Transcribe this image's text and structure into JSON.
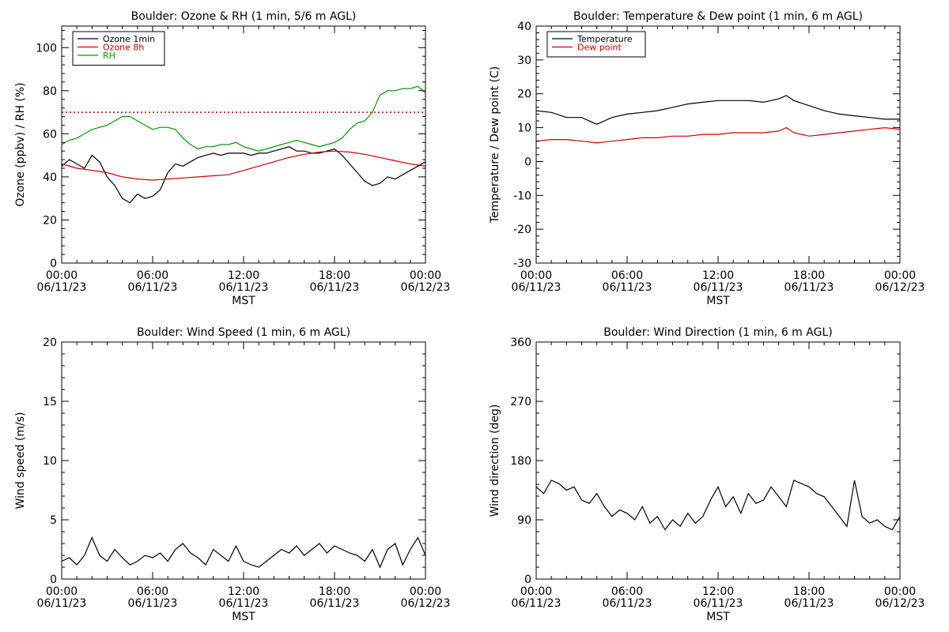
{
  "chart_data": [
    {
      "id": "ozone-rh",
      "type": "line",
      "title": "Boulder: Ozone & RH (1 min, 5/6 m AGL)",
      "xlabel": "MST",
      "ylabel": "Ozone (ppbv) / RH (%)",
      "xlim": [
        0,
        24
      ],
      "ylim": [
        0,
        110
      ],
      "xticks": [
        {
          "t": "00:00",
          "d": "06/11/23"
        },
        {
          "t": "06:00",
          "d": "06/11/23"
        },
        {
          "t": "12:00",
          "d": "06/11/23"
        },
        {
          "t": "18:00",
          "d": "06/11/23"
        },
        {
          "t": "00:00",
          "d": "06/12/23"
        }
      ],
      "yticks": [
        0,
        20,
        40,
        60,
        80,
        100
      ],
      "legend_position": "top-left",
      "reference_lines": [
        {
          "y": 70,
          "color": "#cc0000",
          "style": "dotted"
        }
      ],
      "series": [
        {
          "name": "Ozone 1min",
          "color": "#000000",
          "x": [
            0,
            0.5,
            1,
            1.5,
            2,
            2.5,
            3,
            3.5,
            4,
            4.5,
            5,
            5.5,
            6,
            6.5,
            7,
            7.5,
            8,
            8.5,
            9,
            9.5,
            10,
            10.5,
            11,
            11.5,
            12,
            12.5,
            13,
            13.5,
            14,
            14.5,
            15,
            15.5,
            16,
            16.5,
            17,
            17.5,
            18,
            18.5,
            19,
            19.5,
            20,
            20.5,
            21,
            21.5,
            22,
            22.5,
            23,
            23.5,
            24
          ],
          "y": [
            45,
            48,
            46,
            44,
            50,
            47,
            40,
            36,
            30,
            28,
            32,
            30,
            31,
            34,
            42,
            46,
            45,
            47,
            49,
            50,
            51,
            50,
            51,
            51,
            51,
            50,
            51,
            51,
            52,
            53,
            54,
            52,
            52,
            51,
            51,
            52,
            53,
            50,
            46,
            42,
            38,
            36,
            37,
            40,
            39,
            41,
            43,
            45,
            47
          ]
        },
        {
          "name": "Ozone 8h",
          "color": "#cc0000",
          "x": [
            0,
            1,
            2,
            3,
            4,
            5,
            6,
            7,
            8,
            9,
            10,
            11,
            12,
            13,
            14,
            15,
            16,
            17,
            18,
            19,
            20,
            21,
            22,
            23,
            24
          ],
          "y": [
            46,
            44,
            43,
            42,
            40,
            39,
            38.5,
            39,
            39.5,
            40,
            40.5,
            41,
            43,
            45,
            47,
            49,
            50.5,
            51.5,
            52,
            51.5,
            50.5,
            49,
            47.5,
            46,
            45
          ]
        },
        {
          "name": "RH",
          "color": "#009900",
          "x": [
            0,
            0.5,
            1,
            1.5,
            2,
            2.5,
            3,
            3.5,
            4,
            4.5,
            5,
            5.5,
            6,
            6.5,
            7,
            7.5,
            8,
            8.5,
            9,
            9.5,
            10,
            10.5,
            11,
            11.5,
            12,
            12.5,
            13,
            13.5,
            14,
            14.5,
            15,
            15.5,
            16,
            16.5,
            17,
            17.5,
            18,
            18.5,
            19,
            19.5,
            20,
            20.5,
            21,
            21.5,
            22,
            22.5,
            23,
            23.5,
            24
          ],
          "y": [
            55,
            57,
            58,
            60,
            62,
            63,
            64,
            66,
            68,
            68,
            66,
            64,
            62,
            63,
            63,
            62,
            58,
            55,
            53,
            54,
            54,
            55,
            55,
            56,
            54,
            53,
            52,
            53,
            54,
            55,
            56,
            57,
            56,
            55,
            54,
            55,
            56,
            58,
            62,
            65,
            66,
            70,
            78,
            80,
            80,
            81,
            81,
            82,
            79
          ]
        }
      ]
    },
    {
      "id": "temp-dew",
      "type": "line",
      "title": "Boulder: Temperature & Dew point (1 min, 6 m AGL)",
      "xlabel": "MST",
      "ylabel": "Temperature / Dew point (C)",
      "xlim": [
        0,
        24
      ],
      "ylim": [
        -30,
        40
      ],
      "xticks": [
        {
          "t": "00:00",
          "d": "06/11/23"
        },
        {
          "t": "06:00",
          "d": "06/11/23"
        },
        {
          "t": "12:00",
          "d": "06/11/23"
        },
        {
          "t": "18:00",
          "d": "06/11/23"
        },
        {
          "t": "00:00",
          "d": "06/12/23"
        }
      ],
      "yticks": [
        -30,
        -20,
        -10,
        0,
        10,
        20,
        30,
        40
      ],
      "legend_position": "top-left",
      "series": [
        {
          "name": "Temperature",
          "color": "#000000",
          "x": [
            0,
            1,
            2,
            3,
            4,
            5,
            6,
            7,
            8,
            9,
            10,
            11,
            12,
            13,
            14,
            15,
            16,
            16.5,
            17,
            18,
            19,
            20,
            21,
            22,
            23,
            24
          ],
          "y": [
            15,
            14.5,
            13,
            13,
            11,
            13,
            14,
            14.5,
            15,
            16,
            17,
            17.5,
            18,
            18,
            18,
            17.5,
            18.5,
            19.5,
            18,
            16.5,
            15,
            14,
            13.5,
            13,
            12.5,
            12.5
          ]
        },
        {
          "name": "Dew point",
          "color": "#cc0000",
          "x": [
            0,
            1,
            2,
            3,
            4,
            5,
            6,
            7,
            8,
            9,
            10,
            11,
            12,
            13,
            14,
            15,
            16,
            16.5,
            17,
            18,
            19,
            20,
            21,
            22,
            23,
            24
          ],
          "y": [
            6,
            6.5,
            6.5,
            6,
            5.5,
            6,
            6.5,
            7,
            7,
            7.5,
            7.5,
            8,
            8,
            8.5,
            8.5,
            8.5,
            9,
            10,
            8.5,
            7.5,
            8,
            8.5,
            9,
            9.5,
            10,
            9.5
          ]
        }
      ]
    },
    {
      "id": "wind-speed",
      "type": "line",
      "title": "Boulder: Wind Speed (1 min, 6 m AGL)",
      "xlabel": "MST",
      "ylabel": "Wind speed (m/s)",
      "xlim": [
        0,
        24
      ],
      "ylim": [
        0,
        20
      ],
      "xticks": [
        {
          "t": "00:00",
          "d": "06/11/23"
        },
        {
          "t": "06:00",
          "d": "06/11/23"
        },
        {
          "t": "12:00",
          "d": "06/11/23"
        },
        {
          "t": "18:00",
          "d": "06/11/23"
        },
        {
          "t": "00:00",
          "d": "06/12/23"
        }
      ],
      "yticks": [
        0,
        5,
        10,
        15,
        20
      ],
      "series": [
        {
          "name": "",
          "color": "#000000",
          "x": [
            0,
            0.5,
            1,
            1.5,
            2,
            2.5,
            3,
            3.5,
            4,
            4.5,
            5,
            5.5,
            6,
            6.5,
            7,
            7.5,
            8,
            8.5,
            9,
            9.5,
            10,
            10.5,
            11,
            11.5,
            12,
            12.5,
            13,
            13.5,
            14,
            14.5,
            15,
            15.5,
            16,
            16.5,
            17,
            17.5,
            18,
            18.5,
            19,
            19.5,
            20,
            20.5,
            21,
            21.5,
            22,
            22.5,
            23,
            23.5,
            24
          ],
          "y": [
            1.5,
            1.8,
            1.2,
            2,
            3.5,
            2,
            1.5,
            2.5,
            1.8,
            1.2,
            1.5,
            2,
            1.8,
            2.2,
            1.5,
            2.5,
            3,
            2.2,
            1.8,
            1.2,
            2.5,
            2,
            1.5,
            2.8,
            1.5,
            1.2,
            1,
            1.5,
            2,
            2.5,
            2.2,
            2.8,
            2,
            2.5,
            3,
            2.2,
            2.8,
            2.5,
            2.2,
            2,
            1.5,
            2.5,
            1,
            2.5,
            3,
            1.2,
            2.5,
            3.5,
            2
          ]
        }
      ]
    },
    {
      "id": "wind-dir",
      "type": "line",
      "title": "Boulder: Wind Direction (1 min, 6 m AGL)",
      "xlabel": "MST",
      "ylabel": "Wind direction (deg)",
      "xlim": [
        0,
        24
      ],
      "ylim": [
        0,
        360
      ],
      "xticks": [
        {
          "t": "00:00",
          "d": "06/11/23"
        },
        {
          "t": "06:00",
          "d": "06/11/23"
        },
        {
          "t": "12:00",
          "d": "06/11/23"
        },
        {
          "t": "18:00",
          "d": "06/11/23"
        },
        {
          "t": "00:00",
          "d": "06/12/23"
        }
      ],
      "yticks": [
        0,
        90,
        180,
        270,
        360
      ],
      "series": [
        {
          "name": "",
          "color": "#000000",
          "x": [
            0,
            0.5,
            1,
            1.5,
            2,
            2.5,
            3,
            3.5,
            4,
            4.5,
            5,
            5.5,
            6,
            6.5,
            7,
            7.5,
            8,
            8.5,
            9,
            9.5,
            10,
            10.5,
            11,
            11.5,
            12,
            12.5,
            13,
            13.5,
            14,
            14.5,
            15,
            15.5,
            16,
            16.5,
            17,
            17.5,
            18,
            18.5,
            19,
            19.5,
            20,
            20.5,
            21,
            21.5,
            22,
            22.5,
            23,
            23.5,
            24
          ],
          "y": [
            140,
            130,
            150,
            145,
            135,
            140,
            120,
            115,
            130,
            110,
            95,
            105,
            100,
            90,
            110,
            85,
            95,
            75,
            90,
            80,
            100,
            85,
            95,
            120,
            140,
            110,
            125,
            100,
            130,
            115,
            120,
            140,
            125,
            110,
            150,
            145,
            140,
            130,
            125,
            110,
            95,
            80,
            150,
            95,
            85,
            90,
            80,
            75,
            95
          ]
        }
      ]
    }
  ]
}
